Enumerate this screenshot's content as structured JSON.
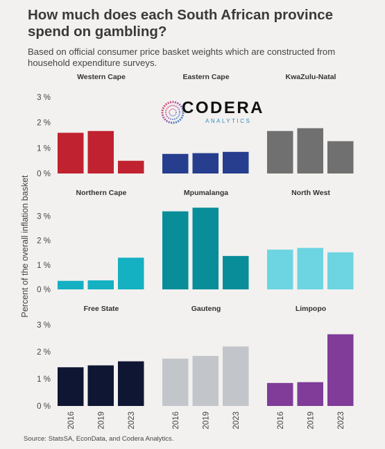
{
  "title": "How much does each South African province spend on gambling?",
  "subtitle": "Based on official consumer price basket weights which are constructed from household expenditure surveys.",
  "source": "Source: StatsSA, EconData, and Codera Analytics.",
  "logo": {
    "main": "CODERA",
    "sub": "ANALYTICS"
  },
  "chart_data": {
    "type": "bar",
    "ylabel": "Percent of the overall inflation basket",
    "categories": [
      "2016",
      "2019",
      "2023"
    ],
    "rows": [
      {
        "ylim": [
          0,
          3
        ],
        "ticks": [
          "0 %",
          "1 %",
          "2 %",
          "3 %"
        ],
        "tick_values": [
          0,
          1,
          2,
          3
        ]
      },
      {
        "ylim": [
          0,
          3.5
        ],
        "ticks": [
          "0 %",
          "1 %",
          "2 %",
          "3 %"
        ],
        "tick_values": [
          0,
          1,
          2,
          3
        ]
      },
      {
        "ylim": [
          0,
          3
        ],
        "ticks": [
          "0 %",
          "1 %",
          "2 %",
          "3 %"
        ],
        "tick_values": [
          0,
          1,
          2,
          3
        ]
      }
    ],
    "panels": [
      {
        "name": "Western Cape",
        "color": "#c1222f",
        "values": [
          1.6,
          1.67,
          0.5
        ]
      },
      {
        "name": "Eastern Cape",
        "color": "#273e8e",
        "values": [
          0.77,
          0.8,
          0.85
        ]
      },
      {
        "name": "KwaZulu-Natal",
        "color": "#707070",
        "values": [
          1.67,
          1.78,
          1.27
        ]
      },
      {
        "name": "Northern Cape",
        "color": "#15b0c2",
        "values": [
          0.35,
          0.37,
          1.3
        ]
      },
      {
        "name": "Mpumalanga",
        "color": "#088d99",
        "values": [
          3.2,
          3.35,
          1.37
        ]
      },
      {
        "name": "North West",
        "color": "#6dd4e2",
        "values": [
          1.63,
          1.7,
          1.52
        ]
      },
      {
        "name": "Free State",
        "color": "#0f1633",
        "values": [
          1.43,
          1.5,
          1.65
        ]
      },
      {
        "name": "Gauteng",
        "color": "#c2c6cb",
        "values": [
          1.75,
          1.85,
          2.2
        ]
      },
      {
        "name": "Limpopo",
        "color": "#803c98",
        "values": [
          0.85,
          0.88,
          2.65
        ]
      }
    ]
  }
}
